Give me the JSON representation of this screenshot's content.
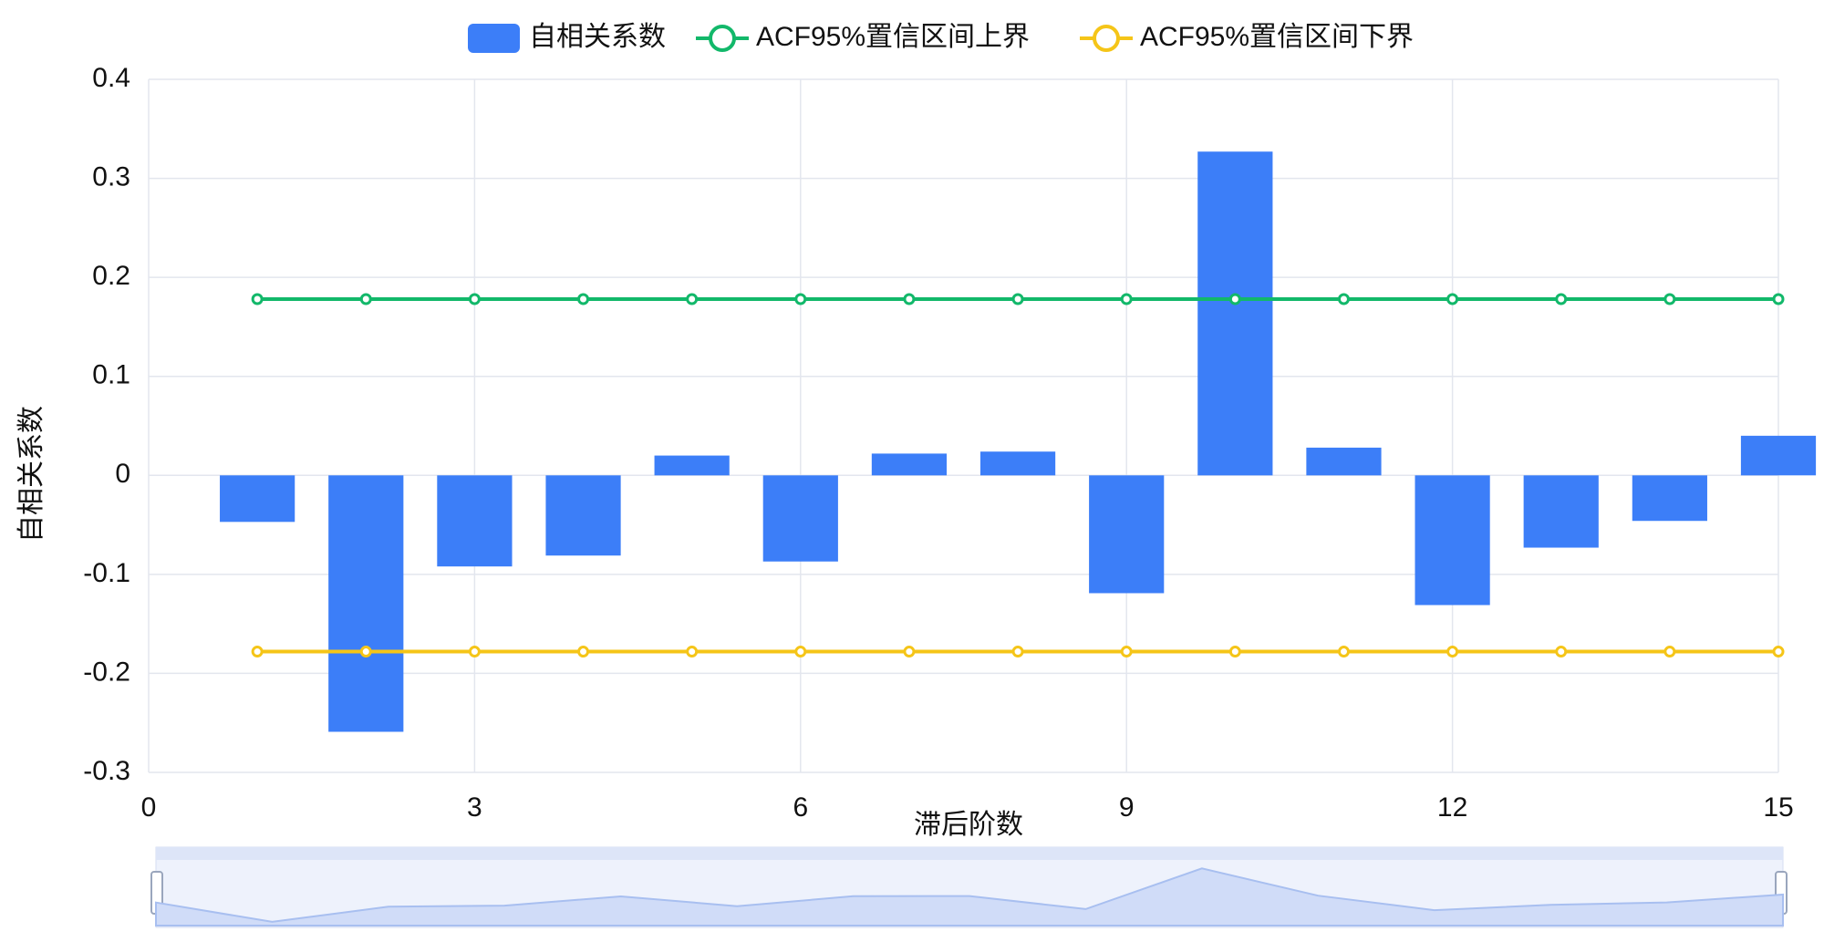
{
  "chart_data": {
    "type": "bar",
    "x_label": "滞后阶数",
    "y_label": "自相关系数",
    "x": [
      1,
      2,
      3,
      4,
      5,
      6,
      7,
      8,
      9,
      10,
      11,
      12,
      13,
      14,
      15
    ],
    "series": [
      {
        "name": "自相关系数",
        "type": "bar",
        "color": "#3c7ef8",
        "values": [
          -0.047,
          -0.259,
          -0.092,
          -0.081,
          0.02,
          -0.087,
          0.022,
          0.024,
          -0.119,
          0.327,
          0.028,
          -0.131,
          -0.073,
          -0.046,
          0.04
        ]
      },
      {
        "name": "ACF95%置信区间上界",
        "type": "line",
        "color": "#12b86a",
        "values": [
          0.178,
          0.178,
          0.178,
          0.178,
          0.178,
          0.178,
          0.178,
          0.178,
          0.178,
          0.178,
          0.178,
          0.178,
          0.178,
          0.178,
          0.178
        ]
      },
      {
        "name": "ACF95%置信区间下界",
        "type": "line",
        "color": "#f5c518",
        "values": [
          -0.178,
          -0.178,
          -0.178,
          -0.178,
          -0.178,
          -0.178,
          -0.178,
          -0.178,
          -0.178,
          -0.178,
          -0.178,
          -0.178,
          -0.178,
          -0.178,
          -0.178
        ]
      }
    ],
    "xlim": [
      0,
      15
    ],
    "xticks": [
      0,
      3,
      6,
      9,
      12,
      15
    ],
    "ylim": [
      -0.3,
      0.4
    ],
    "yticks": [
      -0.3,
      -0.2,
      -0.1,
      0,
      0.1,
      0.2,
      0.3,
      0.4
    ],
    "grid": true,
    "legend": "top"
  }
}
